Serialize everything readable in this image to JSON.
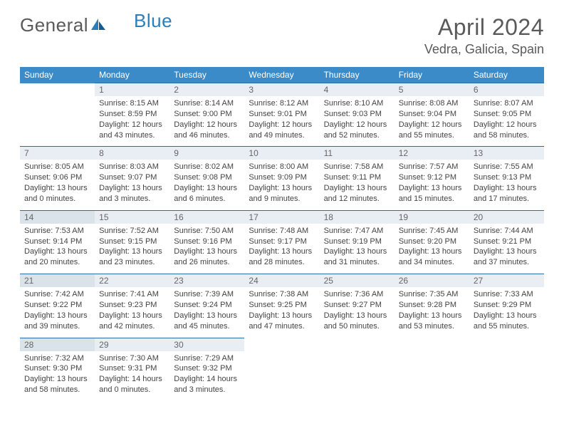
{
  "logo": {
    "text1": "General",
    "text2": "Blue"
  },
  "title": "April 2024",
  "location": "Vedra, Galicia, Spain",
  "colors": {
    "header_bg": "#3b8bc8",
    "header_text": "#ffffff",
    "rule": "#2a6da8",
    "daynum_bg": "#e8eef3",
    "daynum_bg_shade": "#dbe3ea",
    "text": "#444444",
    "title_text": "#5a5a5a"
  },
  "day_headers": [
    "Sunday",
    "Monday",
    "Tuesday",
    "Wednesday",
    "Thursday",
    "Friday",
    "Saturday"
  ],
  "weeks": [
    [
      {
        "blank": true
      },
      {
        "n": "1",
        "sr": "8:15 AM",
        "ss": "8:59 PM",
        "dl": "12 hours and 43 minutes."
      },
      {
        "n": "2",
        "sr": "8:14 AM",
        "ss": "9:00 PM",
        "dl": "12 hours and 46 minutes."
      },
      {
        "n": "3",
        "sr": "8:12 AM",
        "ss": "9:01 PM",
        "dl": "12 hours and 49 minutes."
      },
      {
        "n": "4",
        "sr": "8:10 AM",
        "ss": "9:03 PM",
        "dl": "12 hours and 52 minutes."
      },
      {
        "n": "5",
        "sr": "8:08 AM",
        "ss": "9:04 PM",
        "dl": "12 hours and 55 minutes."
      },
      {
        "n": "6",
        "sr": "8:07 AM",
        "ss": "9:05 PM",
        "dl": "12 hours and 58 minutes."
      }
    ],
    [
      {
        "n": "7",
        "sr": "8:05 AM",
        "ss": "9:06 PM",
        "dl": "13 hours and 0 minutes."
      },
      {
        "n": "8",
        "sr": "8:03 AM",
        "ss": "9:07 PM",
        "dl": "13 hours and 3 minutes."
      },
      {
        "n": "9",
        "sr": "8:02 AM",
        "ss": "9:08 PM",
        "dl": "13 hours and 6 minutes."
      },
      {
        "n": "10",
        "sr": "8:00 AM",
        "ss": "9:09 PM",
        "dl": "13 hours and 9 minutes."
      },
      {
        "n": "11",
        "sr": "7:58 AM",
        "ss": "9:11 PM",
        "dl": "13 hours and 12 minutes."
      },
      {
        "n": "12",
        "sr": "7:57 AM",
        "ss": "9:12 PM",
        "dl": "13 hours and 15 minutes."
      },
      {
        "n": "13",
        "sr": "7:55 AM",
        "ss": "9:13 PM",
        "dl": "13 hours and 17 minutes."
      }
    ],
    [
      {
        "n": "14",
        "sr": "7:53 AM",
        "ss": "9:14 PM",
        "dl": "13 hours and 20 minutes.",
        "shade": true
      },
      {
        "n": "15",
        "sr": "7:52 AM",
        "ss": "9:15 PM",
        "dl": "13 hours and 23 minutes."
      },
      {
        "n": "16",
        "sr": "7:50 AM",
        "ss": "9:16 PM",
        "dl": "13 hours and 26 minutes."
      },
      {
        "n": "17",
        "sr": "7:48 AM",
        "ss": "9:17 PM",
        "dl": "13 hours and 28 minutes."
      },
      {
        "n": "18",
        "sr": "7:47 AM",
        "ss": "9:19 PM",
        "dl": "13 hours and 31 minutes."
      },
      {
        "n": "19",
        "sr": "7:45 AM",
        "ss": "9:20 PM",
        "dl": "13 hours and 34 minutes."
      },
      {
        "n": "20",
        "sr": "7:44 AM",
        "ss": "9:21 PM",
        "dl": "13 hours and 37 minutes."
      }
    ],
    [
      {
        "n": "21",
        "sr": "7:42 AM",
        "ss": "9:22 PM",
        "dl": "13 hours and 39 minutes.",
        "shade": true
      },
      {
        "n": "22",
        "sr": "7:41 AM",
        "ss": "9:23 PM",
        "dl": "13 hours and 42 minutes."
      },
      {
        "n": "23",
        "sr": "7:39 AM",
        "ss": "9:24 PM",
        "dl": "13 hours and 45 minutes."
      },
      {
        "n": "24",
        "sr": "7:38 AM",
        "ss": "9:25 PM",
        "dl": "13 hours and 47 minutes."
      },
      {
        "n": "25",
        "sr": "7:36 AM",
        "ss": "9:27 PM",
        "dl": "13 hours and 50 minutes."
      },
      {
        "n": "26",
        "sr": "7:35 AM",
        "ss": "9:28 PM",
        "dl": "13 hours and 53 minutes."
      },
      {
        "n": "27",
        "sr": "7:33 AM",
        "ss": "9:29 PM",
        "dl": "13 hours and 55 minutes."
      }
    ],
    [
      {
        "n": "28",
        "sr": "7:32 AM",
        "ss": "9:30 PM",
        "dl": "13 hours and 58 minutes.",
        "shade": true
      },
      {
        "n": "29",
        "sr": "7:30 AM",
        "ss": "9:31 PM",
        "dl": "14 hours and 0 minutes."
      },
      {
        "n": "30",
        "sr": "7:29 AM",
        "ss": "9:32 PM",
        "dl": "14 hours and 3 minutes."
      },
      {
        "blank": true
      },
      {
        "blank": true
      },
      {
        "blank": true
      },
      {
        "blank": true
      }
    ]
  ],
  "labels": {
    "sunrise": "Sunrise:",
    "sunset": "Sunset:",
    "daylight": "Daylight:"
  }
}
